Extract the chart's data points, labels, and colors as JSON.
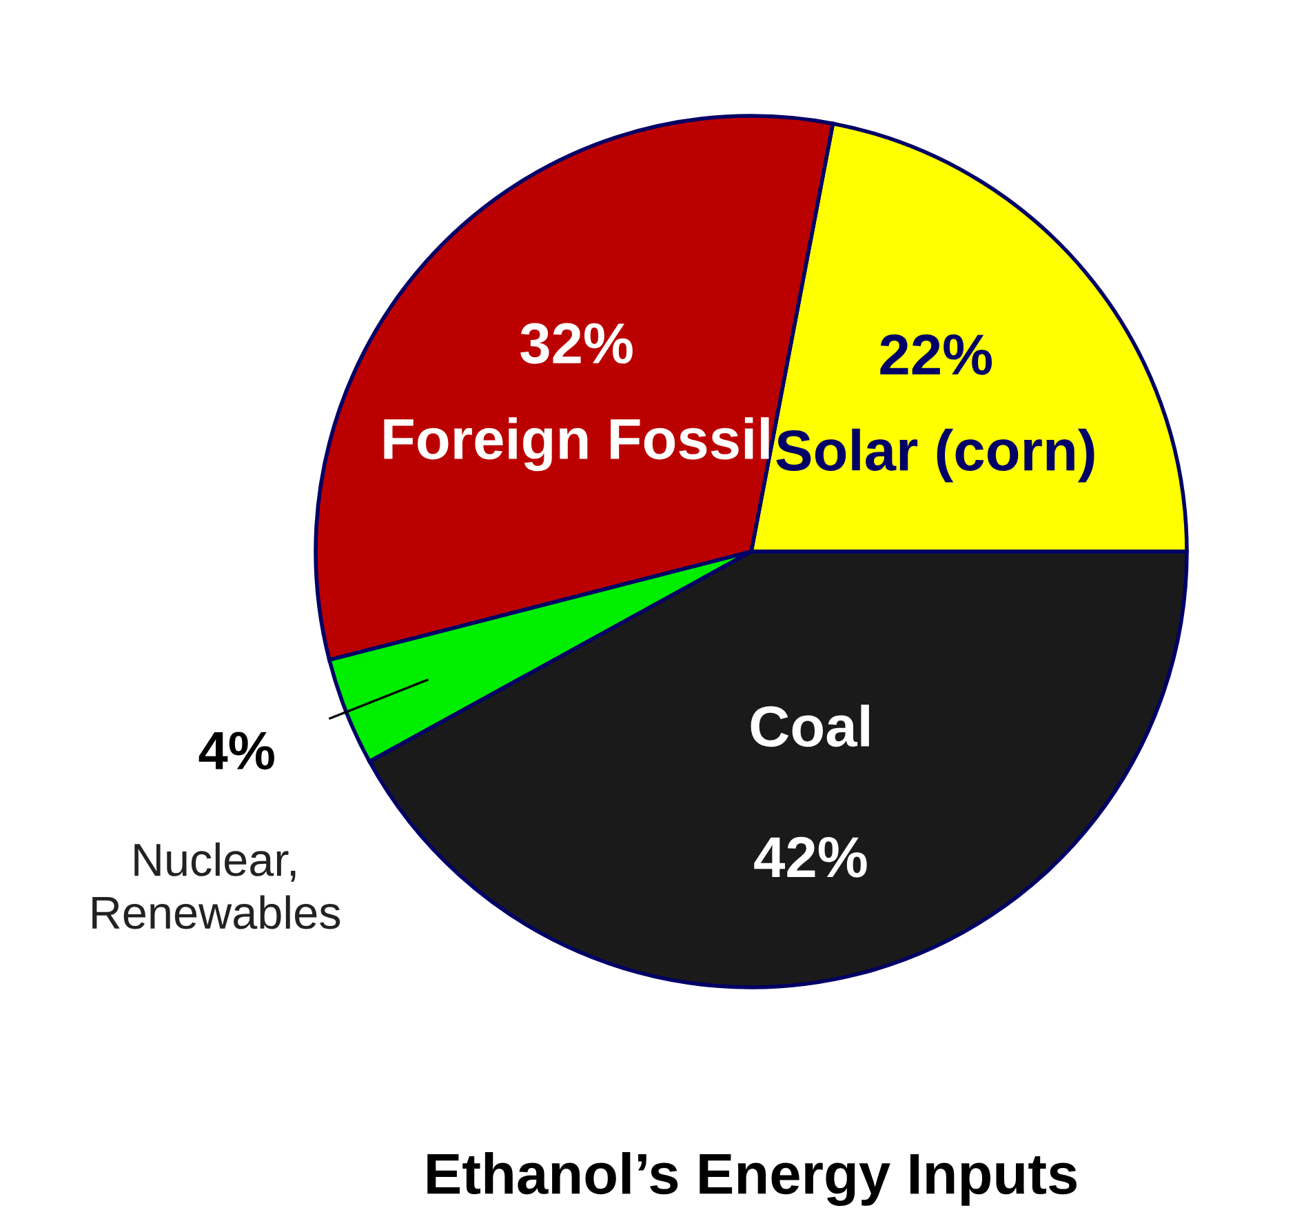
{
  "chart_data": {
    "type": "pie",
    "title": "Ethanol’s Energy Inputs",
    "categories": [
      "Solar (corn)",
      "Foreign Fossil",
      "Nuclear, Renewables",
      "Coal"
    ],
    "values": [
      22,
      32,
      4,
      42
    ],
    "colors": [
      "#ffff00",
      "#bb0000",
      "#00ee00",
      "#1a1a1a"
    ],
    "value_labels": [
      "22%",
      "32%",
      "4%",
      "42%"
    ],
    "legend": false
  }
}
